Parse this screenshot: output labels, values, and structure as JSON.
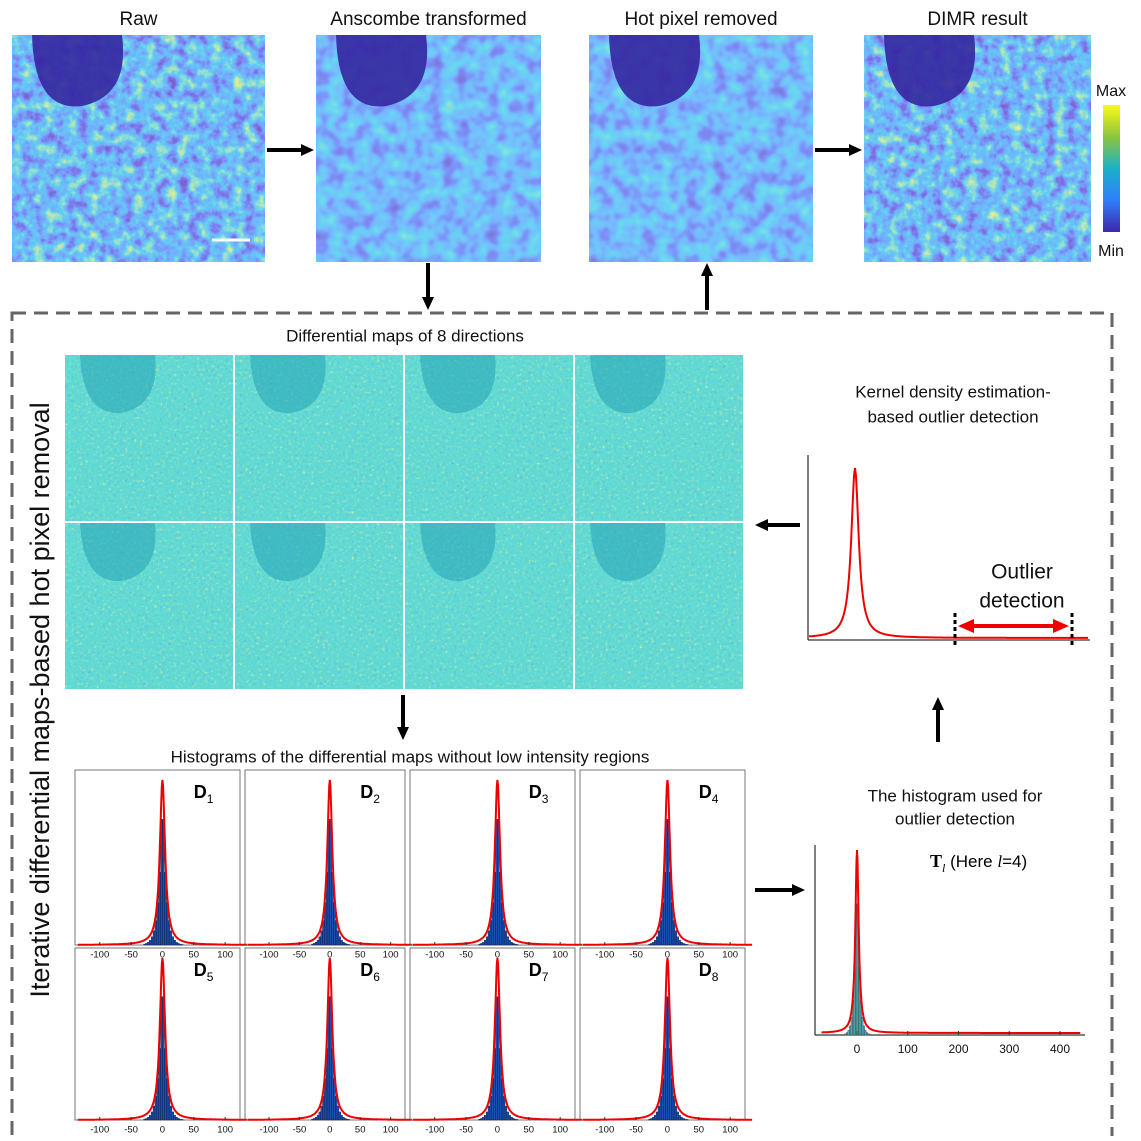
{
  "top_panels": [
    {
      "title": "Raw"
    },
    {
      "title": "Anscombe transformed"
    },
    {
      "title": "Hot pixel removed"
    },
    {
      "title": "DIMR result"
    }
  ],
  "colorbar": {
    "max": "Max",
    "min": "Min"
  },
  "box_label": "Iterative differential maps-based hot pixel removal",
  "differential_maps": {
    "title": "Differential maps of 8 directions"
  },
  "histograms": {
    "title": "Histograms of the differential maps without low intensity regions",
    "ticks": [
      -100,
      -50,
      0,
      50,
      100
    ],
    "panels": [
      {
        "symbol": "D",
        "index": "1"
      },
      {
        "symbol": "D",
        "index": "2"
      },
      {
        "symbol": "D",
        "index": "3"
      },
      {
        "symbol": "D",
        "index": "4"
      },
      {
        "symbol": "D",
        "index": "5"
      },
      {
        "symbol": "D",
        "index": "6"
      },
      {
        "symbol": "D",
        "index": "7"
      },
      {
        "symbol": "D",
        "index": "8"
      }
    ]
  },
  "kde": {
    "title_lines": [
      "Kernel density estimation-",
      "based outlier detection"
    ],
    "annotation_lines": [
      "Outlier",
      "detection"
    ]
  },
  "threshold_histogram": {
    "title_lines": [
      "The histogram used for",
      "outlier detection"
    ],
    "label": {
      "symbol": "T",
      "index": "l",
      "text_before": " (Here ",
      "variable": "l",
      "text_after": "=4)"
    },
    "ticks": [
      0,
      100,
      200,
      300,
      400
    ]
  }
}
